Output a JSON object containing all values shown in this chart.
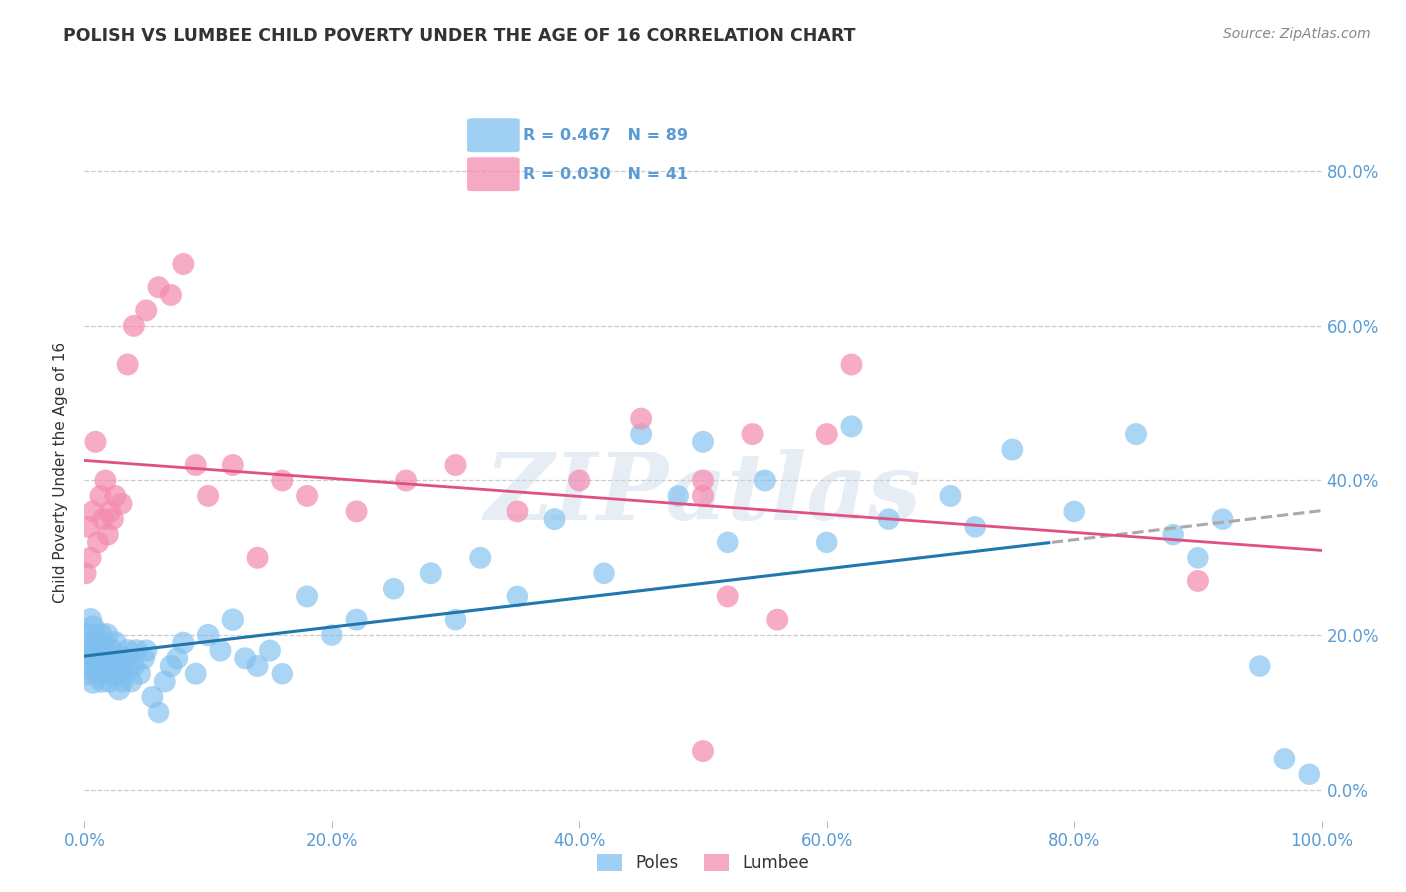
{
  "title": "POLISH VS LUMBEE CHILD POVERTY UNDER THE AGE OF 16 CORRELATION CHART",
  "source": "Source: ZipAtlas.com",
  "ylabel": "Child Poverty Under the Age of 16",
  "poles_R": 0.467,
  "poles_N": 89,
  "lumbee_R": 0.03,
  "lumbee_N": 41,
  "poles_color": "#7fbfef",
  "lumbee_color": "#f48cb0",
  "trend_poles_solid_color": "#2176ae",
  "trend_poles_dash_color": "#aaaaaa",
  "trend_lumbee_color": "#e05080",
  "watermark": "ZIPatlas",
  "legend_poles_label": "Poles",
  "legend_lumbee_label": "Lumbee",
  "xmin": 0.0,
  "xmax": 1.0,
  "ymin": -0.04,
  "ymax": 0.86,
  "title_color": "#333333",
  "source_color": "#888888",
  "axis_tick_color": "#5b9bd5",
  "grid_color": "#cccccc",
  "background_color": "#ffffff",
  "poles_x": [
    0.001,
    0.002,
    0.003,
    0.004,
    0.005,
    0.005,
    0.006,
    0.007,
    0.007,
    0.008,
    0.009,
    0.01,
    0.01,
    0.011,
    0.012,
    0.013,
    0.014,
    0.015,
    0.015,
    0.016,
    0.017,
    0.018,
    0.018,
    0.019,
    0.02,
    0.021,
    0.022,
    0.023,
    0.024,
    0.025,
    0.026,
    0.027,
    0.028,
    0.029,
    0.03,
    0.031,
    0.032,
    0.033,
    0.035,
    0.036,
    0.038,
    0.04,
    0.042,
    0.045,
    0.048,
    0.05,
    0.055,
    0.06,
    0.065,
    0.07,
    0.075,
    0.08,
    0.09,
    0.1,
    0.11,
    0.12,
    0.13,
    0.14,
    0.15,
    0.16,
    0.18,
    0.2,
    0.22,
    0.25,
    0.28,
    0.3,
    0.32,
    0.35,
    0.38,
    0.42,
    0.45,
    0.48,
    0.5,
    0.52,
    0.55,
    0.6,
    0.62,
    0.65,
    0.7,
    0.72,
    0.75,
    0.8,
    0.85,
    0.88,
    0.9,
    0.92,
    0.95,
    0.97,
    0.99
  ],
  "poles_y": [
    0.18,
    0.15,
    0.2,
    0.17,
    0.22,
    0.16,
    0.19,
    0.21,
    0.14,
    0.18,
    0.17,
    0.15,
    0.19,
    0.16,
    0.18,
    0.2,
    0.14,
    0.17,
    0.19,
    0.15,
    0.18,
    0.16,
    0.2,
    0.17,
    0.14,
    0.16,
    0.18,
    0.15,
    0.17,
    0.19,
    0.15,
    0.17,
    0.13,
    0.16,
    0.15,
    0.14,
    0.17,
    0.15,
    0.18,
    0.16,
    0.14,
    0.16,
    0.18,
    0.15,
    0.17,
    0.18,
    0.12,
    0.1,
    0.14,
    0.16,
    0.17,
    0.19,
    0.15,
    0.2,
    0.18,
    0.22,
    0.17,
    0.16,
    0.18,
    0.15,
    0.25,
    0.2,
    0.22,
    0.26,
    0.28,
    0.22,
    0.3,
    0.25,
    0.35,
    0.28,
    0.46,
    0.38,
    0.45,
    0.32,
    0.4,
    0.32,
    0.47,
    0.35,
    0.38,
    0.34,
    0.44,
    0.36,
    0.46,
    0.33,
    0.3,
    0.35,
    0.16,
    0.04,
    0.02
  ],
  "poles_sizes": [
    350,
    280,
    300,
    260,
    280,
    320,
    270,
    290,
    310,
    280,
    260,
    300,
    270,
    290,
    280,
    300,
    260,
    280,
    300,
    270,
    290,
    280,
    300,
    270,
    260,
    280,
    300,
    270,
    290,
    280,
    260,
    280,
    260,
    270,
    260,
    250,
    270,
    260,
    270,
    260,
    250,
    260,
    270,
    250,
    260,
    260,
    250,
    240,
    250,
    260,
    250,
    260,
    250,
    260,
    250,
    260,
    250,
    250,
    250,
    240,
    250,
    240,
    250,
    240,
    250,
    240,
    250,
    240,
    250,
    240,
    250,
    240,
    250,
    240,
    250,
    240,
    250,
    240,
    250,
    240,
    250,
    240,
    250,
    240,
    240,
    240,
    240,
    240,
    240
  ],
  "lumbee_x": [
    0.001,
    0.003,
    0.005,
    0.007,
    0.009,
    0.011,
    0.013,
    0.015,
    0.017,
    0.019,
    0.021,
    0.023,
    0.025,
    0.03,
    0.035,
    0.04,
    0.05,
    0.06,
    0.07,
    0.08,
    0.09,
    0.1,
    0.12,
    0.14,
    0.16,
    0.18,
    0.22,
    0.26,
    0.3,
    0.35,
    0.4,
    0.45,
    0.5,
    0.52,
    0.54,
    0.56,
    0.6,
    0.62,
    0.9,
    0.5,
    0.5
  ],
  "lumbee_y": [
    0.28,
    0.34,
    0.3,
    0.36,
    0.45,
    0.32,
    0.38,
    0.35,
    0.4,
    0.33,
    0.36,
    0.35,
    0.38,
    0.37,
    0.55,
    0.6,
    0.62,
    0.65,
    0.64,
    0.68,
    0.42,
    0.38,
    0.42,
    0.3,
    0.4,
    0.38,
    0.36,
    0.4,
    0.42,
    0.36,
    0.4,
    0.48,
    0.38,
    0.25,
    0.46,
    0.22,
    0.46,
    0.55,
    0.27,
    0.4,
    0.05
  ],
  "lumbee_sizes": [
    250,
    250,
    250,
    250,
    250,
    250,
    250,
    250,
    250,
    250,
    250,
    250,
    250,
    250,
    250,
    250,
    250,
    250,
    250,
    250,
    250,
    250,
    250,
    250,
    250,
    250,
    250,
    250,
    250,
    250,
    250,
    250,
    250,
    250,
    250,
    250,
    250,
    250,
    250,
    250,
    250
  ]
}
